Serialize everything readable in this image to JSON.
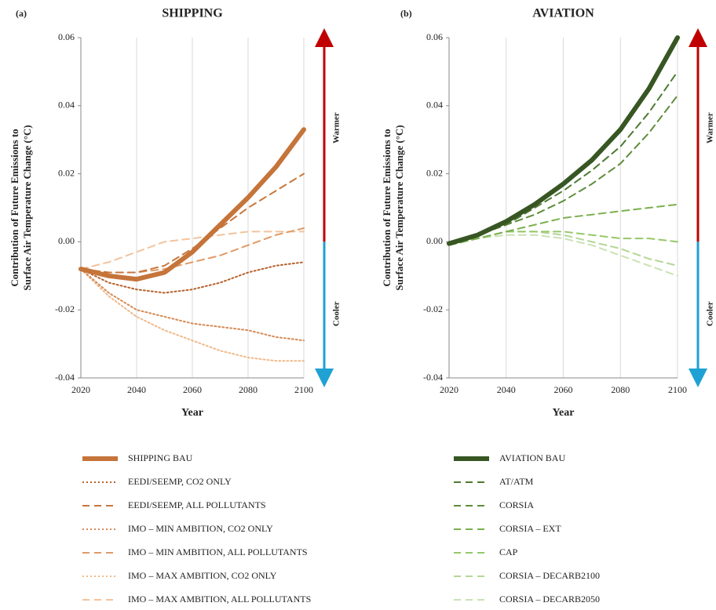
{
  "chart_data": [
    {
      "type": "line",
      "panel_label": "(a)",
      "title": "SHIPPING",
      "y_label": [
        "Contribution of Future Emissions to",
        "Surface Air Temperature Change (°C)"
      ],
      "x_label": "Year",
      "annotations": [
        "Warmer",
        "Cooler"
      ],
      "warm_color": "#c00000",
      "cool_color": "#1fa1d3",
      "x": [
        2020,
        2030,
        2040,
        2050,
        2060,
        2070,
        2080,
        2090,
        2100
      ],
      "xlim": [
        2020,
        2100
      ],
      "xticks": [
        2020,
        2040,
        2060,
        2080,
        2100
      ],
      "ylim": [
        -0.04,
        0.06
      ],
      "yticks": [
        0.06,
        0.04,
        0.02,
        {
          "value": 0,
          "label": "0.00"
        },
        -0.02,
        -0.04
      ],
      "grid": true,
      "series": [
        {
          "name": "SHIPPING BAU",
          "color": "#c5743a",
          "line_style": "thick",
          "values": [
            -0.008,
            -0.01,
            -0.011,
            -0.009,
            -0.003,
            0.005,
            0.013,
            0.022,
            0.033
          ]
        },
        {
          "name": "EEDI/SEEMP, CO2 ONLY",
          "color": "#b5622c",
          "line_style": "dotted",
          "values": [
            -0.008,
            -0.012,
            -0.014,
            -0.015,
            -0.014,
            -0.012,
            -0.009,
            -0.007,
            -0.006
          ]
        },
        {
          "name": "EEDI/SEEMP, ALL POLLUTANTS",
          "color": "#c8763b",
          "line_style": "dashed",
          "values": [
            -0.008,
            -0.009,
            -0.009,
            -0.007,
            -0.002,
            0.004,
            0.01,
            0.015,
            0.02
          ]
        },
        {
          "name": "IMO – MIN AMBITION, CO2 ONLY",
          "color": "#d48a55",
          "line_style": "dotted",
          "values": [
            -0.008,
            -0.015,
            -0.02,
            -0.022,
            -0.024,
            -0.025,
            -0.026,
            -0.028,
            -0.029
          ]
        },
        {
          "name": "IMO – MIN AMBITION, ALL POLLUTANTS",
          "color": "#e09a66",
          "line_style": "dashed",
          "values": [
            -0.008,
            -0.009,
            -0.009,
            -0.008,
            -0.006,
            -0.004,
            -0.001,
            0.002,
            0.004
          ]
        },
        {
          "name": "IMO – MAX AMBITION, CO2 ONLY",
          "color": "#f0b98a",
          "line_style": "dotted",
          "values": [
            -0.008,
            -0.016,
            -0.022,
            -0.026,
            -0.029,
            -0.032,
            -0.034,
            -0.035,
            -0.035
          ]
        },
        {
          "name": "IMO – MAX AMBITION, ALL POLLUTANTS",
          "color": "#f3c39c",
          "line_style": "dashed",
          "values": [
            -0.008,
            -0.006,
            -0.003,
            0.0,
            0.001,
            0.002,
            0.003,
            0.003,
            0.003
          ]
        }
      ]
    },
    {
      "type": "line",
      "panel_label": "(b)",
      "title": "AVIATION",
      "y_label": [
        "Contribution of Future Emissions to",
        "Surface Air Temperature Change (°C)"
      ],
      "x_label": "Year",
      "annotations": [
        "Warmer",
        "Cooler"
      ],
      "warm_color": "#c00000",
      "cool_color": "#1fa1d3",
      "x": [
        2020,
        2030,
        2040,
        2050,
        2060,
        2070,
        2080,
        2090,
        2100
      ],
      "xlim": [
        2020,
        2100
      ],
      "xticks": [
        2020,
        2040,
        2060,
        2080,
        2100
      ],
      "ylim": [
        -0.04,
        0.06
      ],
      "yticks": [
        0.06,
        0.04,
        0.02,
        {
          "value": 0,
          "label": "0.00"
        },
        -0.02,
        -0.04
      ],
      "grid": true,
      "series": [
        {
          "name": "AVIATION BAU",
          "color": "#375623",
          "line_style": "thick",
          "values": [
            -0.0005,
            0.002,
            0.006,
            0.011,
            0.017,
            0.024,
            0.033,
            0.045,
            0.06
          ]
        },
        {
          "name": "AT/ATM",
          "color": "#4e7a31",
          "line_style": "dashed",
          "values": [
            -0.001,
            0.002,
            0.005,
            0.01,
            0.015,
            0.021,
            0.028,
            0.038,
            0.05
          ]
        },
        {
          "name": "CORSIA",
          "color": "#5e8d3a",
          "line_style": "dashed",
          "values": [
            -0.001,
            0.002,
            0.005,
            0.008,
            0.012,
            0.017,
            0.023,
            0.032,
            0.043
          ]
        },
        {
          "name": "CORSIA – EXT",
          "color": "#7bb04e",
          "line_style": "dashed",
          "values": [
            -0.001,
            0.001,
            0.003,
            0.005,
            0.007,
            0.008,
            0.009,
            0.01,
            0.011
          ]
        },
        {
          "name": "CAP",
          "color": "#96c768",
          "line_style": "dashed",
          "values": [
            -0.001,
            0.001,
            0.003,
            0.003,
            0.003,
            0.002,
            0.001,
            0.001,
            0.0
          ]
        },
        {
          "name": "CORSIA – DECARB2100",
          "color": "#b4d697",
          "line_style": "dashed",
          "values": [
            -0.001,
            0.001,
            0.003,
            0.003,
            0.002,
            0.0,
            -0.002,
            -0.005,
            -0.007
          ]
        },
        {
          "name": "CORSIA – DECARB2050",
          "color": "#c9e2b3",
          "line_style": "dashed",
          "values": [
            -0.001,
            0.001,
            0.002,
            0.002,
            0.001,
            -0.001,
            -0.004,
            -0.007,
            -0.01
          ]
        }
      ]
    }
  ]
}
